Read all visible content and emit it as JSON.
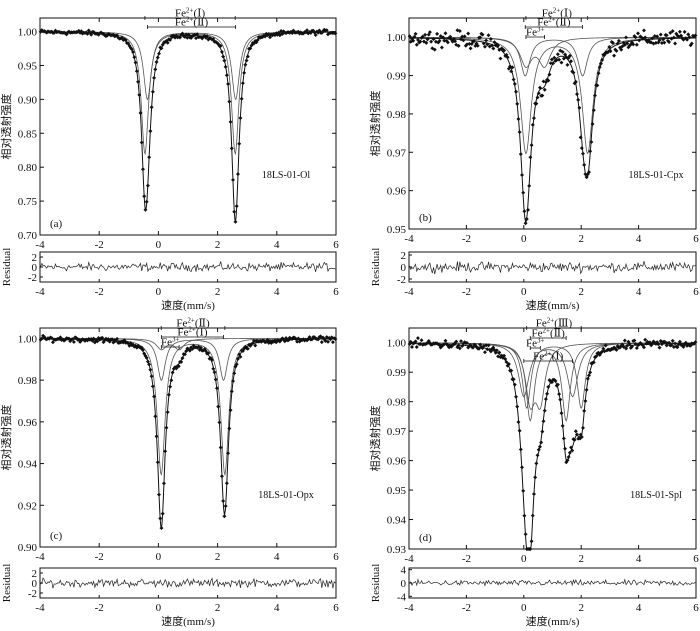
{
  "chart_data": [
    {
      "type": "scatter",
      "panel_label": "(a)",
      "sample": "18LS-01-Ol",
      "ylabel": "相对透射强度",
      "xlabel": "速度(mm/s)",
      "residual_label": "Residual",
      "xlim": [
        -4,
        6
      ],
      "ylim": [
        0.7,
        1.02
      ],
      "xticks": [
        -4,
        -2,
        0,
        2,
        4,
        6
      ],
      "yticks": [
        "0.70",
        "0.75",
        "0.80",
        "0.85",
        "0.90",
        "0.95",
        "1.00"
      ],
      "residual_ylim": [
        -3,
        3
      ],
      "residual_yticks": [
        "-2",
        "0",
        "2"
      ],
      "components": [
        {
          "label": "Fe2+(Ⅰ)",
          "sup": "2+",
          "base": "Fe",
          "site": "(Ⅰ)",
          "center": 1.07,
          "split": 3.05,
          "width": 0.3,
          "depth": 0.18
        },
        {
          "label": "Fe2+(Ⅱ)",
          "sup": "2+",
          "base": "Fe",
          "site": "(Ⅱ)",
          "center": 1.12,
          "split": 2.98,
          "width": 0.32,
          "depth": 0.1
        }
      ],
      "noise": 0.004
    },
    {
      "type": "scatter",
      "panel_label": "(b)",
      "sample": "18LS-01-Cpx",
      "ylabel": "相对透射强度",
      "xlabel": "速度(mm/s)",
      "residual_label": "Residual",
      "xlim": [
        -4,
        6
      ],
      "ylim": [
        0.95,
        1.005
      ],
      "xticks": [
        -4,
        -2,
        0,
        2,
        4,
        6
      ],
      "yticks": [
        "0.95",
        "0.96",
        "0.97",
        "0.98",
        "0.99",
        "1.00"
      ],
      "residual_ylim": [
        -2.5,
        2.5
      ],
      "residual_yticks": [
        "-2",
        "0",
        "2"
      ],
      "components": [
        {
          "label": "Fe2+(Ⅰ)",
          "sup": "2+",
          "base": "Fe",
          "site": "(Ⅰ)",
          "center": 1.15,
          "split": 2.15,
          "width": 0.45,
          "depth": 0.03
        },
        {
          "label": "Fe2+(Ⅱ)",
          "sup": "2+",
          "base": "Fe",
          "site": "(Ⅱ)",
          "center": 1.05,
          "split": 2.0,
          "width": 0.4,
          "depth": 0.01
        },
        {
          "label": "Fe3+",
          "sup": "3+",
          "base": "Fe",
          "site": "",
          "center": 0.4,
          "split": 0.65,
          "width": 0.5,
          "depth": 0.007
        }
      ],
      "noise": 0.0025
    },
    {
      "type": "scatter",
      "panel_label": "(c)",
      "sample": "18LS-01-Opx",
      "ylabel": "相对透射强度",
      "xlabel": "速度(mm/s)",
      "residual_label": "Residual",
      "xlim": [
        -4,
        6
      ],
      "ylim": [
        0.9,
        1.005
      ],
      "xticks": [
        -4,
        -2,
        0,
        2,
        4,
        6
      ],
      "yticks": [
        "0.90",
        "0.92",
        "0.94",
        "0.96",
        "0.98",
        "1.00"
      ],
      "residual_ylim": [
        -3,
        3
      ],
      "residual_yticks": [
        "-2",
        "0",
        "2"
      ],
      "components": [
        {
          "label": "Fe2+(Ⅱ)",
          "sup": "2+",
          "base": "Fe",
          "site": "(Ⅱ)",
          "center": 1.17,
          "split": 2.15,
          "width": 0.32,
          "depth": 0.065
        },
        {
          "label": "Fe2+(Ⅰ)",
          "sup": "2+",
          "base": "Fe",
          "site": "(Ⅰ)",
          "center": 1.15,
          "split": 2.1,
          "width": 0.32,
          "depth": 0.02
        },
        {
          "label": "Fe3+",
          "sup": "3+",
          "base": "Fe",
          "site": "",
          "center": 0.4,
          "split": 0.6,
          "width": 0.4,
          "depth": 0.005
        }
      ],
      "noise": 0.0015
    },
    {
      "type": "scatter",
      "panel_label": "(d)",
      "sample": "18LS-01-Spl",
      "ylabel": "相对透射强度",
      "xlabel": "速度(mm/s)",
      "residual_label": "Residual",
      "xlim": [
        -4,
        6
      ],
      "ylim": [
        0.93,
        1.005
      ],
      "xticks": [
        -4,
        -2,
        0,
        2,
        4,
        6
      ],
      "yticks": [
        "0.93",
        "0.94",
        "0.95",
        "0.96",
        "0.97",
        "0.98",
        "0.99",
        "1.00"
      ],
      "residual_ylim": [
        -4.5,
        4.5
      ],
      "residual_yticks": [
        "-4",
        "0",
        "4"
      ],
      "components": [
        {
          "label": "Fe2+(Ⅲ)",
          "sup": "2+",
          "base": "Fe",
          "site": "(Ⅲ)",
          "center": 1.05,
          "split": 1.9,
          "width": 0.35,
          "depth": 0.022
        },
        {
          "label": "Fe2+(Ⅱ)",
          "sup": "2+",
          "base": "Fe",
          "site": "(Ⅱ)",
          "center": 0.85,
          "split": 1.25,
          "width": 0.35,
          "depth": 0.026
        },
        {
          "label": "Fe3+",
          "sup": "3+",
          "base": "Fe",
          "site": "",
          "center": 0.4,
          "split": 0.35,
          "width": 0.4,
          "depth": 0.018
        },
        {
          "label": "Fe2+(Ⅰ)",
          "sup": "2+",
          "base": "Fe",
          "site": "(Ⅰ)",
          "center": 0.85,
          "split": 1.7,
          "width": 0.45,
          "depth": 0.018
        }
      ],
      "noise": 0.0018
    }
  ]
}
